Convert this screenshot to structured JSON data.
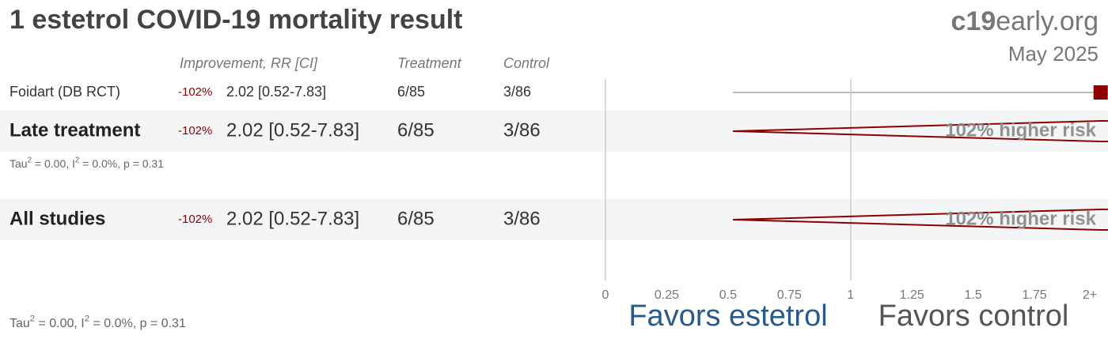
{
  "chart_data": {
    "type": "forest",
    "title": "1 estetrol COVID-19 mortality result",
    "brand": [
      "c19",
      "early.org"
    ],
    "date": "May 2025",
    "columns": [
      "Improvement, RR [CI]",
      "Treatment",
      "Control"
    ],
    "color": "#8b0000",
    "studies": [
      {
        "name": "Foidart (DB RCT)",
        "improvement": "-102%",
        "rr": 2.02,
        "ci_low": 0.52,
        "ci_high": 7.83,
        "rr_label": "2.02 [0.52-7.83]",
        "treatment": "6/85",
        "control": "3/86"
      }
    ],
    "summaries": [
      {
        "name": "Late treatment",
        "improvement": "-102%",
        "rr": 2.02,
        "ci_low": 0.52,
        "ci_high": 7.83,
        "rr_label": "2.02 [0.52-7.83]",
        "treatment": "6/85",
        "control": "3/86",
        "risk_label": "102% higher risk",
        "het": [
          "Tau",
          "2",
          " = 0.00, I",
          "2",
          " = 0.0%, p = 0.31"
        ]
      },
      {
        "name": "All studies",
        "improvement": "-102%",
        "rr": 2.02,
        "ci_low": 0.52,
        "ci_high": 7.83,
        "rr_label": "2.02 [0.52-7.83]",
        "treatment": "6/85",
        "control": "3/86",
        "risk_label": "102% higher risk"
      }
    ],
    "het": [
      "Tau",
      "2",
      " = 0.00, I",
      "2",
      " = 0.0%, p = 0.31"
    ],
    "xlim": [
      0,
      2.05
    ],
    "xticks": [
      0,
      0.25,
      0.5,
      0.75,
      1,
      1.25,
      1.5,
      1.75,
      {
        "value": 2,
        "label": "2+"
      }
    ],
    "favors": [
      "Favors estetrol",
      "Favors control"
    ]
  }
}
